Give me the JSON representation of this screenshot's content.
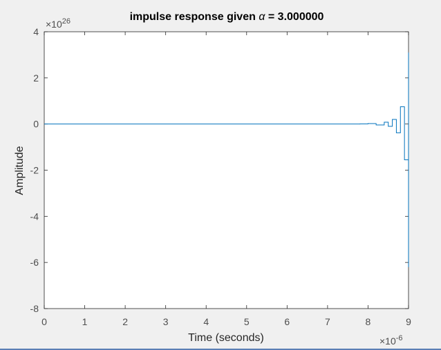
{
  "chart_data": {
    "type": "line",
    "title_prefix": "impulse response given",
    "title_symbol": "α",
    "title_suffix": "= 3.000000",
    "xlabel": "Time (seconds)",
    "ylabel": "Amplitude",
    "xlim": [
      0,
      9
    ],
    "ylim": [
      -8,
      4
    ],
    "x_ticks": [
      "0",
      "1",
      "2",
      "3",
      "4",
      "5",
      "6",
      "7",
      "8",
      "9"
    ],
    "y_ticks": [
      "4",
      "2",
      "0",
      "-2",
      "-4",
      "-6",
      "-8"
    ],
    "x_exponent_base": "×10",
    "x_exponent": "-6",
    "y_exponent_base": "×10",
    "y_exponent": "26",
    "series_color": "#0072bd",
    "step_x": [
      0,
      7.6,
      7.8,
      8.0,
      8.2,
      8.4,
      8.5,
      8.6,
      8.7,
      8.8,
      8.9,
      9.0
    ],
    "step_y": [
      0,
      0,
      0.005,
      0.02,
      -0.04,
      0.08,
      -0.1,
      0.2,
      -0.38,
      0.75,
      -1.55,
      3.1
    ],
    "final_y": -6.2,
    "grid": false
  }
}
